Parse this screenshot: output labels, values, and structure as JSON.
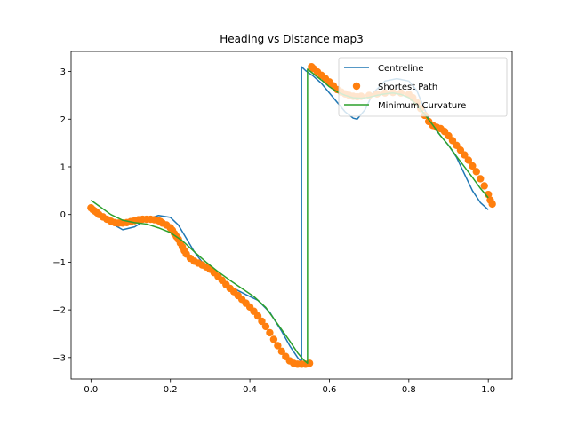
{
  "chart_data": {
    "type": "line",
    "title": "Heading vs Distance map3",
    "xlabel": "",
    "ylabel": "",
    "xlim": [
      -0.05,
      1.06
    ],
    "ylim": [
      -3.45,
      3.42
    ],
    "xticks": [
      0.0,
      0.2,
      0.4,
      0.6,
      0.8,
      1.0
    ],
    "xtick_labels": [
      "0.0",
      "0.2",
      "0.4",
      "0.6",
      "0.8",
      "1.0"
    ],
    "yticks": [
      -3,
      -2,
      -1,
      0,
      1,
      2,
      3
    ],
    "ytick_labels": [
      "−3",
      "−2",
      "−1",
      "0",
      "1",
      "2",
      "3"
    ],
    "grid": false,
    "legend_position": "top-right",
    "series": [
      {
        "name": "Centreline",
        "style": "line",
        "color": "#1f77b4",
        "x": [
          0.0,
          0.02,
          0.05,
          0.08,
          0.11,
          0.14,
          0.17,
          0.2,
          0.22,
          0.24,
          0.26,
          0.28,
          0.3,
          0.33,
          0.36,
          0.39,
          0.42,
          0.45,
          0.48,
          0.5,
          0.52,
          0.53,
          0.53,
          0.54,
          0.56,
          0.58,
          0.6,
          0.62,
          0.64,
          0.66,
          0.67,
          0.69,
          0.71,
          0.74,
          0.77,
          0.8,
          0.82,
          0.84,
          0.86,
          0.88,
          0.9,
          0.92,
          0.94,
          0.96,
          0.98,
          1.0
        ],
        "y": [
          0.13,
          0.0,
          -0.18,
          -0.32,
          -0.26,
          -0.1,
          -0.02,
          -0.06,
          -0.22,
          -0.5,
          -0.78,
          -1.0,
          -1.2,
          -1.38,
          -1.55,
          -1.68,
          -1.8,
          -2.05,
          -2.45,
          -2.75,
          -3.0,
          -3.1,
          3.1,
          3.02,
          2.9,
          2.75,
          2.55,
          2.35,
          2.15,
          2.02,
          2.0,
          2.2,
          2.55,
          2.8,
          2.85,
          2.8,
          2.6,
          2.2,
          1.85,
          1.65,
          1.45,
          1.2,
          0.85,
          0.5,
          0.25,
          0.1
        ]
      },
      {
        "name": "Shortest Path",
        "style": "scatter",
        "color": "#ff7f0e",
        "x": [
          0.0,
          0.005,
          0.01,
          0.015,
          0.02,
          0.03,
          0.04,
          0.05,
          0.06,
          0.07,
          0.08,
          0.09,
          0.1,
          0.11,
          0.12,
          0.13,
          0.14,
          0.15,
          0.16,
          0.17,
          0.175,
          0.18,
          0.19,
          0.2,
          0.205,
          0.21,
          0.215,
          0.22,
          0.225,
          0.23,
          0.235,
          0.24,
          0.25,
          0.26,
          0.27,
          0.28,
          0.29,
          0.3,
          0.31,
          0.32,
          0.33,
          0.34,
          0.35,
          0.36,
          0.37,
          0.38,
          0.39,
          0.4,
          0.41,
          0.42,
          0.43,
          0.44,
          0.45,
          0.46,
          0.47,
          0.48,
          0.49,
          0.5,
          0.51,
          0.52,
          0.53,
          0.54,
          0.55,
          0.555,
          0.56,
          0.57,
          0.58,
          0.59,
          0.6,
          0.61,
          0.62,
          0.63,
          0.64,
          0.65,
          0.66,
          0.67,
          0.68,
          0.7,
          0.72,
          0.74,
          0.76,
          0.78,
          0.8,
          0.81,
          0.82,
          0.83,
          0.84,
          0.85,
          0.86,
          0.87,
          0.88,
          0.89,
          0.9,
          0.91,
          0.92,
          0.93,
          0.94,
          0.95,
          0.96,
          0.97,
          0.98,
          0.99,
          1.0,
          1.005,
          1.01
        ],
        "y": [
          0.14,
          0.1,
          0.07,
          0.04,
          0.0,
          -0.05,
          -0.1,
          -0.14,
          -0.17,
          -0.18,
          -0.18,
          -0.17,
          -0.15,
          -0.13,
          -0.11,
          -0.1,
          -0.1,
          -0.1,
          -0.11,
          -0.13,
          -0.15,
          -0.18,
          -0.22,
          -0.28,
          -0.33,
          -0.4,
          -0.46,
          -0.52,
          -0.6,
          -0.68,
          -0.76,
          -0.83,
          -0.92,
          -0.98,
          -1.02,
          -1.06,
          -1.1,
          -1.15,
          -1.22,
          -1.3,
          -1.38,
          -1.47,
          -1.55,
          -1.62,
          -1.7,
          -1.78,
          -1.86,
          -1.94,
          -2.03,
          -2.13,
          -2.24,
          -2.35,
          -2.48,
          -2.62,
          -2.75,
          -2.87,
          -2.98,
          -3.07,
          -3.12,
          -3.14,
          -3.14,
          -3.14,
          -3.12,
          3.1,
          3.06,
          2.99,
          2.92,
          2.85,
          2.78,
          2.7,
          2.62,
          2.57,
          2.53,
          2.5,
          2.48,
          2.47,
          2.48,
          2.5,
          2.53,
          2.55,
          2.56,
          2.55,
          2.52,
          2.45,
          2.35,
          2.22,
          2.08,
          1.95,
          1.87,
          1.83,
          1.8,
          1.74,
          1.65,
          1.55,
          1.45,
          1.35,
          1.25,
          1.14,
          1.02,
          0.9,
          0.75,
          0.6,
          0.42,
          0.3,
          0.22
        ]
      },
      {
        "name": "Minimum Curvature",
        "style": "line",
        "color": "#2ca02c",
        "x": [
          0.0,
          0.02,
          0.05,
          0.08,
          0.11,
          0.14,
          0.17,
          0.2,
          0.23,
          0.26,
          0.29,
          0.32,
          0.35,
          0.38,
          0.41,
          0.44,
          0.47,
          0.5,
          0.52,
          0.535,
          0.545,
          0.545,
          0.56,
          0.58,
          0.6,
          0.62,
          0.64,
          0.66,
          0.68,
          0.7,
          0.72,
          0.74,
          0.76,
          0.78,
          0.8,
          0.82,
          0.84,
          0.86,
          0.88,
          0.9,
          0.92,
          0.94,
          0.96,
          0.98,
          1.0
        ],
        "y": [
          0.3,
          0.18,
          0.0,
          -0.12,
          -0.17,
          -0.2,
          -0.28,
          -0.38,
          -0.55,
          -0.78,
          -1.0,
          -1.2,
          -1.38,
          -1.55,
          -1.72,
          -1.95,
          -2.3,
          -2.65,
          -2.9,
          -3.05,
          -3.12,
          3.05,
          2.95,
          2.82,
          2.68,
          2.57,
          2.5,
          2.45,
          2.44,
          2.46,
          2.5,
          2.53,
          2.55,
          2.52,
          2.45,
          2.3,
          2.1,
          1.88,
          1.65,
          1.45,
          1.22,
          1.0,
          0.78,
          0.55,
          0.35
        ]
      }
    ]
  }
}
